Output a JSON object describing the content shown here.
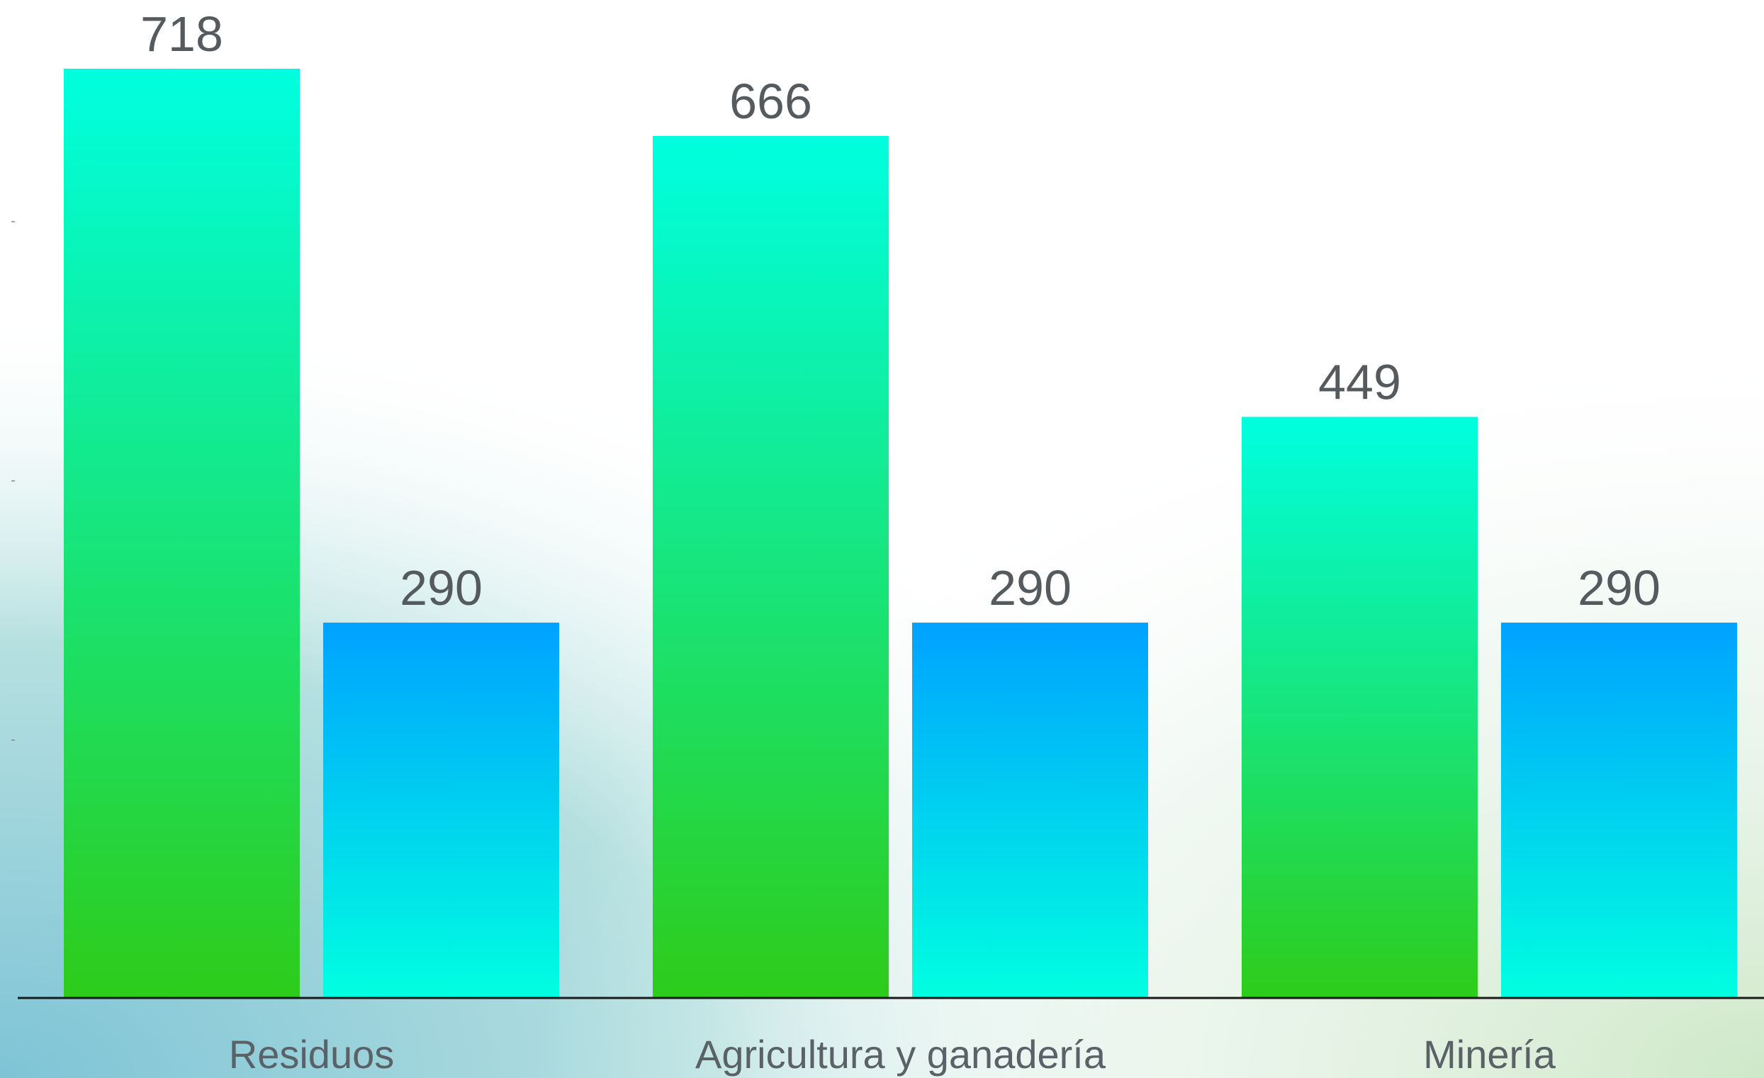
{
  "chart_data": {
    "type": "bar",
    "categories": [
      "Residuos",
      "Agricultura y ganadería",
      "Minería"
    ],
    "series": [
      {
        "values": [
          718,
          666,
          449
        ],
        "color": "#00ffe0",
        "color_bottom": "#2ecc1a"
      },
      {
        "values": [
          290,
          290,
          290
        ],
        "color": "#00a2ff",
        "color_bottom": "#00ffe0"
      }
    ],
    "ylim": [
      0,
      750
    ],
    "grid": false,
    "legend": "none",
    "value_labels": [
      "718",
      "666",
      "449",
      "290",
      "290",
      "290"
    ]
  }
}
